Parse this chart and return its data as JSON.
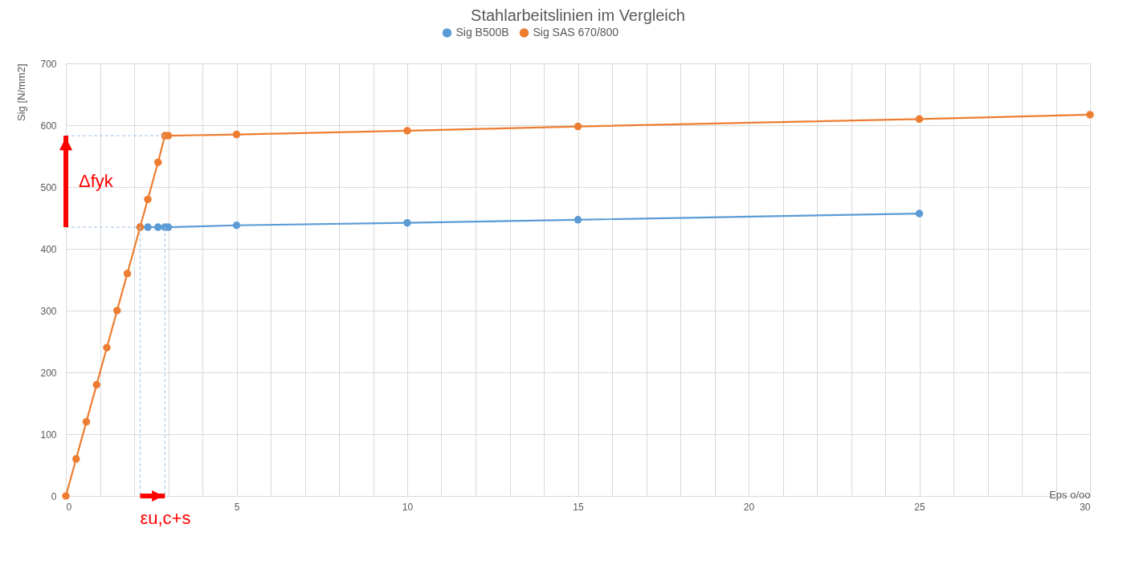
{
  "chart_data": {
    "type": "line",
    "title": "Stahlarbeitslinien im Vergleich",
    "xlabel": "Eps o/oo",
    "ylabel": "Sig [N/mm2]",
    "series": [
      {
        "name": "Sig B500B",
        "color": "#5b9bd5",
        "x": [
          2.175,
          2.4,
          2.7,
          2.9,
          3.0,
          5,
          10,
          15,
          25
        ],
        "values": [
          435,
          435,
          435,
          435,
          435,
          438,
          442,
          447,
          457
        ]
      },
      {
        "name": "Sig SAS 670/800",
        "color": "#ed7d31",
        "x": [
          0,
          0.3,
          0.6,
          0.9,
          1.2,
          1.5,
          1.8,
          2.175,
          2.4,
          2.7,
          2.9,
          3.0,
          5,
          10,
          15,
          25,
          30
        ],
        "values": [
          0,
          60,
          120,
          180,
          240,
          300,
          360,
          435,
          480,
          540,
          583,
          583,
          585,
          591,
          598,
          610,
          617
        ]
      },
      {
        "color": "#9dc3e6",
        "line_style": "dashed",
        "marker": "none",
        "x": [
          0,
          2.175
        ],
        "values": [
          435,
          435
        ]
      },
      {
        "color": "#9dc3e6",
        "line_style": "dashed",
        "marker": "none",
        "x": [
          2.175,
          2.175
        ],
        "values": [
          435,
          0
        ]
      },
      {
        "color": "#9dc3e6",
        "line_style": "dashed",
        "marker": "none",
        "x": [
          2.9,
          2.9
        ],
        "values": [
          435,
          0
        ]
      },
      {
        "color": "#9dc3e6",
        "line_style": "dashed",
        "marker": "none",
        "x": [
          0,
          2.9
        ],
        "values": [
          583,
          583
        ]
      }
    ],
    "annotations": [
      "Δfyk",
      "εu,c+s"
    ],
    "xlim": [
      0,
      30
    ],
    "ylim": [
      0,
      700
    ],
    "xticks": [
      0,
      {
        "value": 1,
        "label": null
      },
      {
        "value": 2,
        "label": null
      },
      {
        "value": 3,
        "label": null
      },
      {
        "value": 4,
        "label": null
      },
      5,
      {
        "value": 6,
        "label": null
      },
      {
        "value": 7,
        "label": null
      },
      {
        "value": 8,
        "label": null
      },
      {
        "value": 9,
        "label": null
      },
      10,
      {
        "value": 11,
        "label": null
      },
      {
        "value": 12,
        "label": null
      },
      {
        "value": 13,
        "label": null
      },
      {
        "value": 14,
        "label": null
      },
      15,
      {
        "value": 16,
        "label": null
      },
      {
        "value": 17,
        "label": null
      },
      {
        "value": 18,
        "label": null
      },
      {
        "value": 19,
        "label": null
      },
      20,
      {
        "value": 21,
        "label": null
      },
      {
        "value": 22,
        "label": null
      },
      {
        "value": 23,
        "label": null
      },
      {
        "value": 24,
        "label": null
      },
      25,
      {
        "value": 26,
        "label": null
      },
      {
        "value": 27,
        "label": null
      },
      {
        "value": 28,
        "label": null
      },
      {
        "value": 29,
        "label": null
      },
      30
    ],
    "yticks": [
      0,
      100,
      200,
      300,
      400,
      500,
      600,
      700
    ],
    "grid": true,
    "legend": "top",
    "marker": "circle",
    "line_style": "solid"
  }
}
